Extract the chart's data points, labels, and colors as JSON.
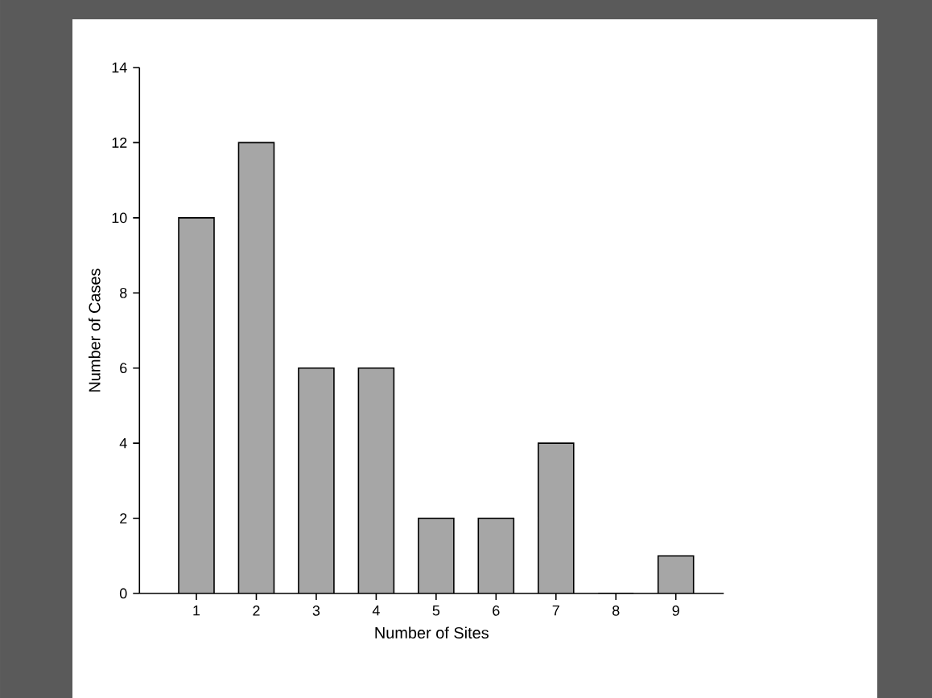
{
  "chart_data": {
    "type": "bar",
    "xlabel": "Number of Sites",
    "ylabel": "Number of Cases",
    "categories": [
      "1",
      "2",
      "3",
      "4",
      "5",
      "6",
      "7",
      "8",
      "9"
    ],
    "values": [
      10,
      12,
      6,
      6,
      2,
      2,
      4,
      0,
      1
    ],
    "color": "#a6a6a6",
    "ylim": [
      0,
      14
    ],
    "yticks": [
      0,
      2,
      4,
      6,
      8,
      10,
      12,
      14
    ]
  }
}
